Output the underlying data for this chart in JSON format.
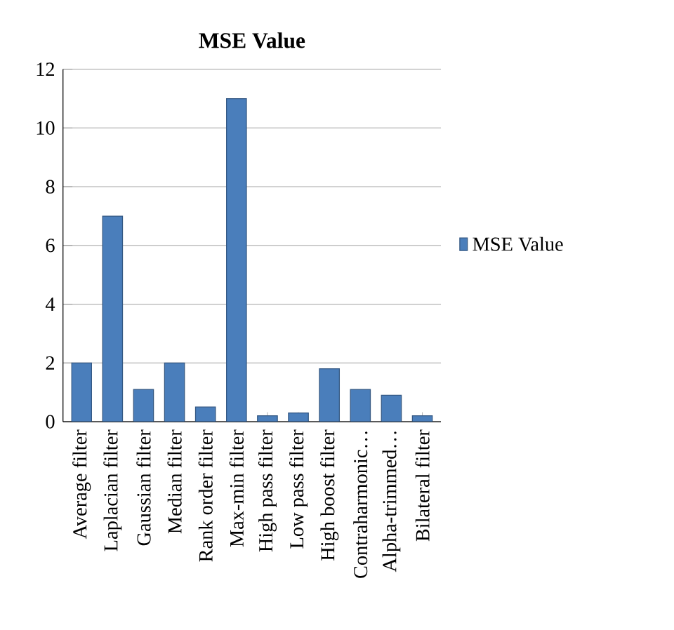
{
  "chart_data": {
    "type": "bar",
    "title": "MSE Value",
    "categories": [
      "Average filter",
      "Laplacian filter",
      "Gaussian filter",
      "Median filter",
      "Rank order filter",
      "Max-min filter",
      "High pass filter",
      "Low pass filter",
      "High boost filter",
      "Contraharmonic…",
      "Alpha-trimmed…",
      "Bilateral filter"
    ],
    "series": [
      {
        "name": "MSE Value",
        "color": "#4a7ebb",
        "values": [
          2.0,
          7.0,
          1.1,
          2.0,
          0.5,
          11.0,
          0.2,
          0.3,
          1.8,
          1.1,
          0.9,
          0.2
        ]
      }
    ],
    "ylim": [
      0,
      12
    ],
    "yticks": [
      0,
      2,
      4,
      6,
      8,
      10,
      12
    ],
    "grid": "y",
    "legend": "right"
  }
}
